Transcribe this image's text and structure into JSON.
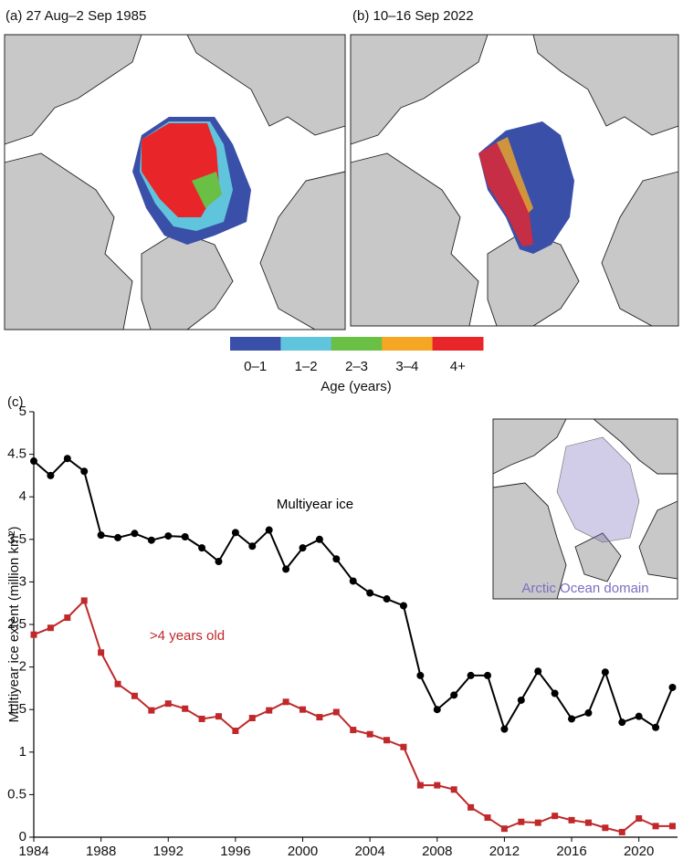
{
  "panel_a": {
    "title": "(a) 27 Aug–2 Sep 1985"
  },
  "panel_b": {
    "title": "(b) 10–16 Sep 2022"
  },
  "colorbar": {
    "labels": [
      "0–1",
      "1–2",
      "2–3",
      "3–4",
      "4+"
    ],
    "colors": [
      "#3a4fa8",
      "#5fc4dc",
      "#6abf45",
      "#f5a623",
      "#e8262a"
    ],
    "title": "Age (years)"
  },
  "chart_data": {
    "type": "line",
    "panel_label": "(c)",
    "y_label": "Multiyear ice extent (million km²)",
    "x": [
      1984,
      1985,
      1986,
      1987,
      1988,
      1989,
      1990,
      1991,
      1992,
      1993,
      1994,
      1995,
      1996,
      1997,
      1998,
      1999,
      2000,
      2001,
      2002,
      2003,
      2004,
      2005,
      2006,
      2007,
      2008,
      2009,
      2010,
      2011,
      2012,
      2013,
      2014,
      2015,
      2016,
      2017,
      2018,
      2019,
      2020,
      2021,
      2022
    ],
    "series": [
      {
        "name": "Multiyear ice",
        "color": "#000000",
        "marker": "circle",
        "values": [
          4.42,
          4.25,
          4.45,
          4.3,
          3.55,
          3.52,
          3.57,
          3.49,
          3.54,
          3.53,
          3.4,
          3.24,
          3.58,
          3.42,
          3.61,
          3.15,
          3.4,
          3.5,
          3.27,
          3.01,
          2.87,
          2.8,
          2.72,
          1.9,
          1.5,
          1.67,
          1.9,
          1.9,
          1.27,
          1.61,
          1.95,
          1.69,
          1.39,
          1.46,
          1.94,
          1.35,
          1.42,
          1.29,
          1.76
        ]
      },
      {
        "name": ">4 years old",
        "color": "#c0282a",
        "marker": "square",
        "values": [
          2.38,
          2.46,
          2.58,
          2.78,
          2.17,
          1.8,
          1.66,
          1.49,
          1.57,
          1.51,
          1.39,
          1.42,
          1.25,
          1.4,
          1.49,
          1.59,
          1.5,
          1.41,
          1.47,
          1.26,
          1.21,
          1.14,
          1.06,
          0.61,
          0.61,
          0.56,
          0.35,
          0.23,
          0.1,
          0.18,
          0.17,
          0.25,
          0.2,
          0.17,
          0.11,
          0.06,
          0.22,
          0.13,
          0.13
        ]
      }
    ],
    "xlim": [
      1984,
      2022.3
    ],
    "xticks": [
      1984,
      1988,
      1992,
      1996,
      2000,
      2004,
      2008,
      2012,
      2016,
      2020
    ],
    "ylim": [
      0,
      5
    ],
    "yticks": [
      0,
      0.5,
      1,
      1.5,
      2,
      2.5,
      3,
      3.5,
      4,
      4.5,
      5
    ],
    "inset_label": "Arctic Ocean domain",
    "inset_color": "#7a6fc0"
  }
}
